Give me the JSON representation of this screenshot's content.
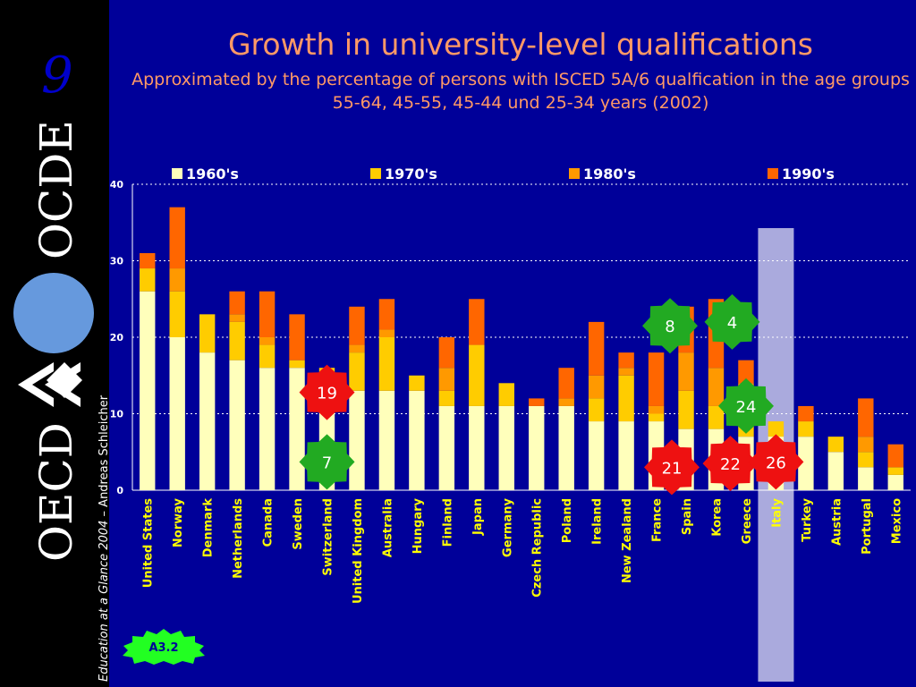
{
  "slide_number": "9",
  "sidebar_credit_prefix": "Education at a Glance 2004",
  "sidebar_credit_suffix": " – Andreas Schleicher",
  "logo": {
    "text_vertical": "OECD OCDE",
    "colors": {
      "text": "#ffffff",
      "circle": "#6699dd"
    }
  },
  "source_badge": "A3.2",
  "colors": {
    "background": "#000099",
    "title": "#ff9966",
    "text": "#ffff00",
    "highlight": "#aaaadd",
    "marker_red": "#ee1111",
    "marker_green": "#22aa22",
    "badge_green": "#22ff22"
  },
  "chart_data": {
    "type": "bar",
    "stacked": true,
    "title": "Growth in university-level qualifications",
    "subtitle": "Approximated by the percentage of persons with ISCED 5A/6 qualfication in the age groups 55-64, 45-55, 45-44 und 25-34 years (2002)",
    "ylim": [
      0,
      40
    ],
    "yticks": [
      0,
      10,
      20,
      30,
      40
    ],
    "grid": true,
    "legend_position": "top",
    "categories": [
      "United States",
      "Norway",
      "Denmark",
      "Netherlands",
      "Canada",
      "Sweden",
      "Switzerland",
      "United Kingdom",
      "Australia",
      "Hungary",
      "Finland",
      "Japan",
      "Germany",
      "Czech Republic",
      "Poland",
      "Ireland",
      "New Zealand",
      "France",
      "Spain",
      "Korea",
      "Greece",
      "Italy",
      "Turkey",
      "Austria",
      "Portugal",
      "Mexico"
    ],
    "series": [
      {
        "name": "1960's",
        "color": "#ffffbb",
        "values": [
          26,
          20,
          18,
          17,
          16,
          16,
          13,
          13,
          13,
          13,
          11,
          11,
          11,
          11,
          11,
          9,
          9,
          9,
          8,
          8,
          7,
          7,
          7,
          5,
          3,
          2
        ]
      },
      {
        "name": "1970's",
        "color": "#ffcc00",
        "values": [
          3,
          6,
          5,
          5,
          3,
          1,
          3,
          5,
          7,
          2,
          2,
          8,
          3,
          0,
          0,
          3,
          6,
          1,
          5,
          3,
          3,
          2,
          2,
          2,
          2,
          1
        ]
      },
      {
        "name": "1980's",
        "color": "#ff9900",
        "values": [
          0,
          3,
          0,
          1,
          1,
          0,
          0,
          1,
          1,
          0,
          3,
          0,
          0,
          0,
          1,
          3,
          1,
          1,
          5,
          5,
          4,
          0,
          0,
          0,
          2,
          0
        ]
      },
      {
        "name": "1990's",
        "color": "#ff6600",
        "values": [
          2,
          8,
          0,
          3,
          6,
          6,
          0,
          5,
          4,
          0,
          4,
          6,
          0,
          1,
          4,
          7,
          2,
          7,
          6,
          9,
          3,
          0,
          2,
          0,
          5,
          3
        ]
      }
    ],
    "highlight_category": "Italy",
    "markers": [
      {
        "label": "19",
        "shape": "red",
        "category": "Switzerland",
        "value": 12.8
      },
      {
        "label": "7",
        "shape": "green",
        "category": "Switzerland",
        "value": 3.7
      },
      {
        "label": "8",
        "shape": "green",
        "category": "Spain",
        "value": 21.5
      },
      {
        "label": "4",
        "shape": "green",
        "category": "Korea",
        "value": 22.0
      },
      {
        "label": "24",
        "shape": "green",
        "category": "Greece",
        "value": 11.0
      },
      {
        "label": "21",
        "shape": "red",
        "category": "Spain",
        "value": 3.0
      },
      {
        "label": "22",
        "shape": "red",
        "category": "Korea",
        "value": 3.5
      },
      {
        "label": "26",
        "shape": "red",
        "category": "Italy",
        "value": 3.7
      }
    ]
  }
}
